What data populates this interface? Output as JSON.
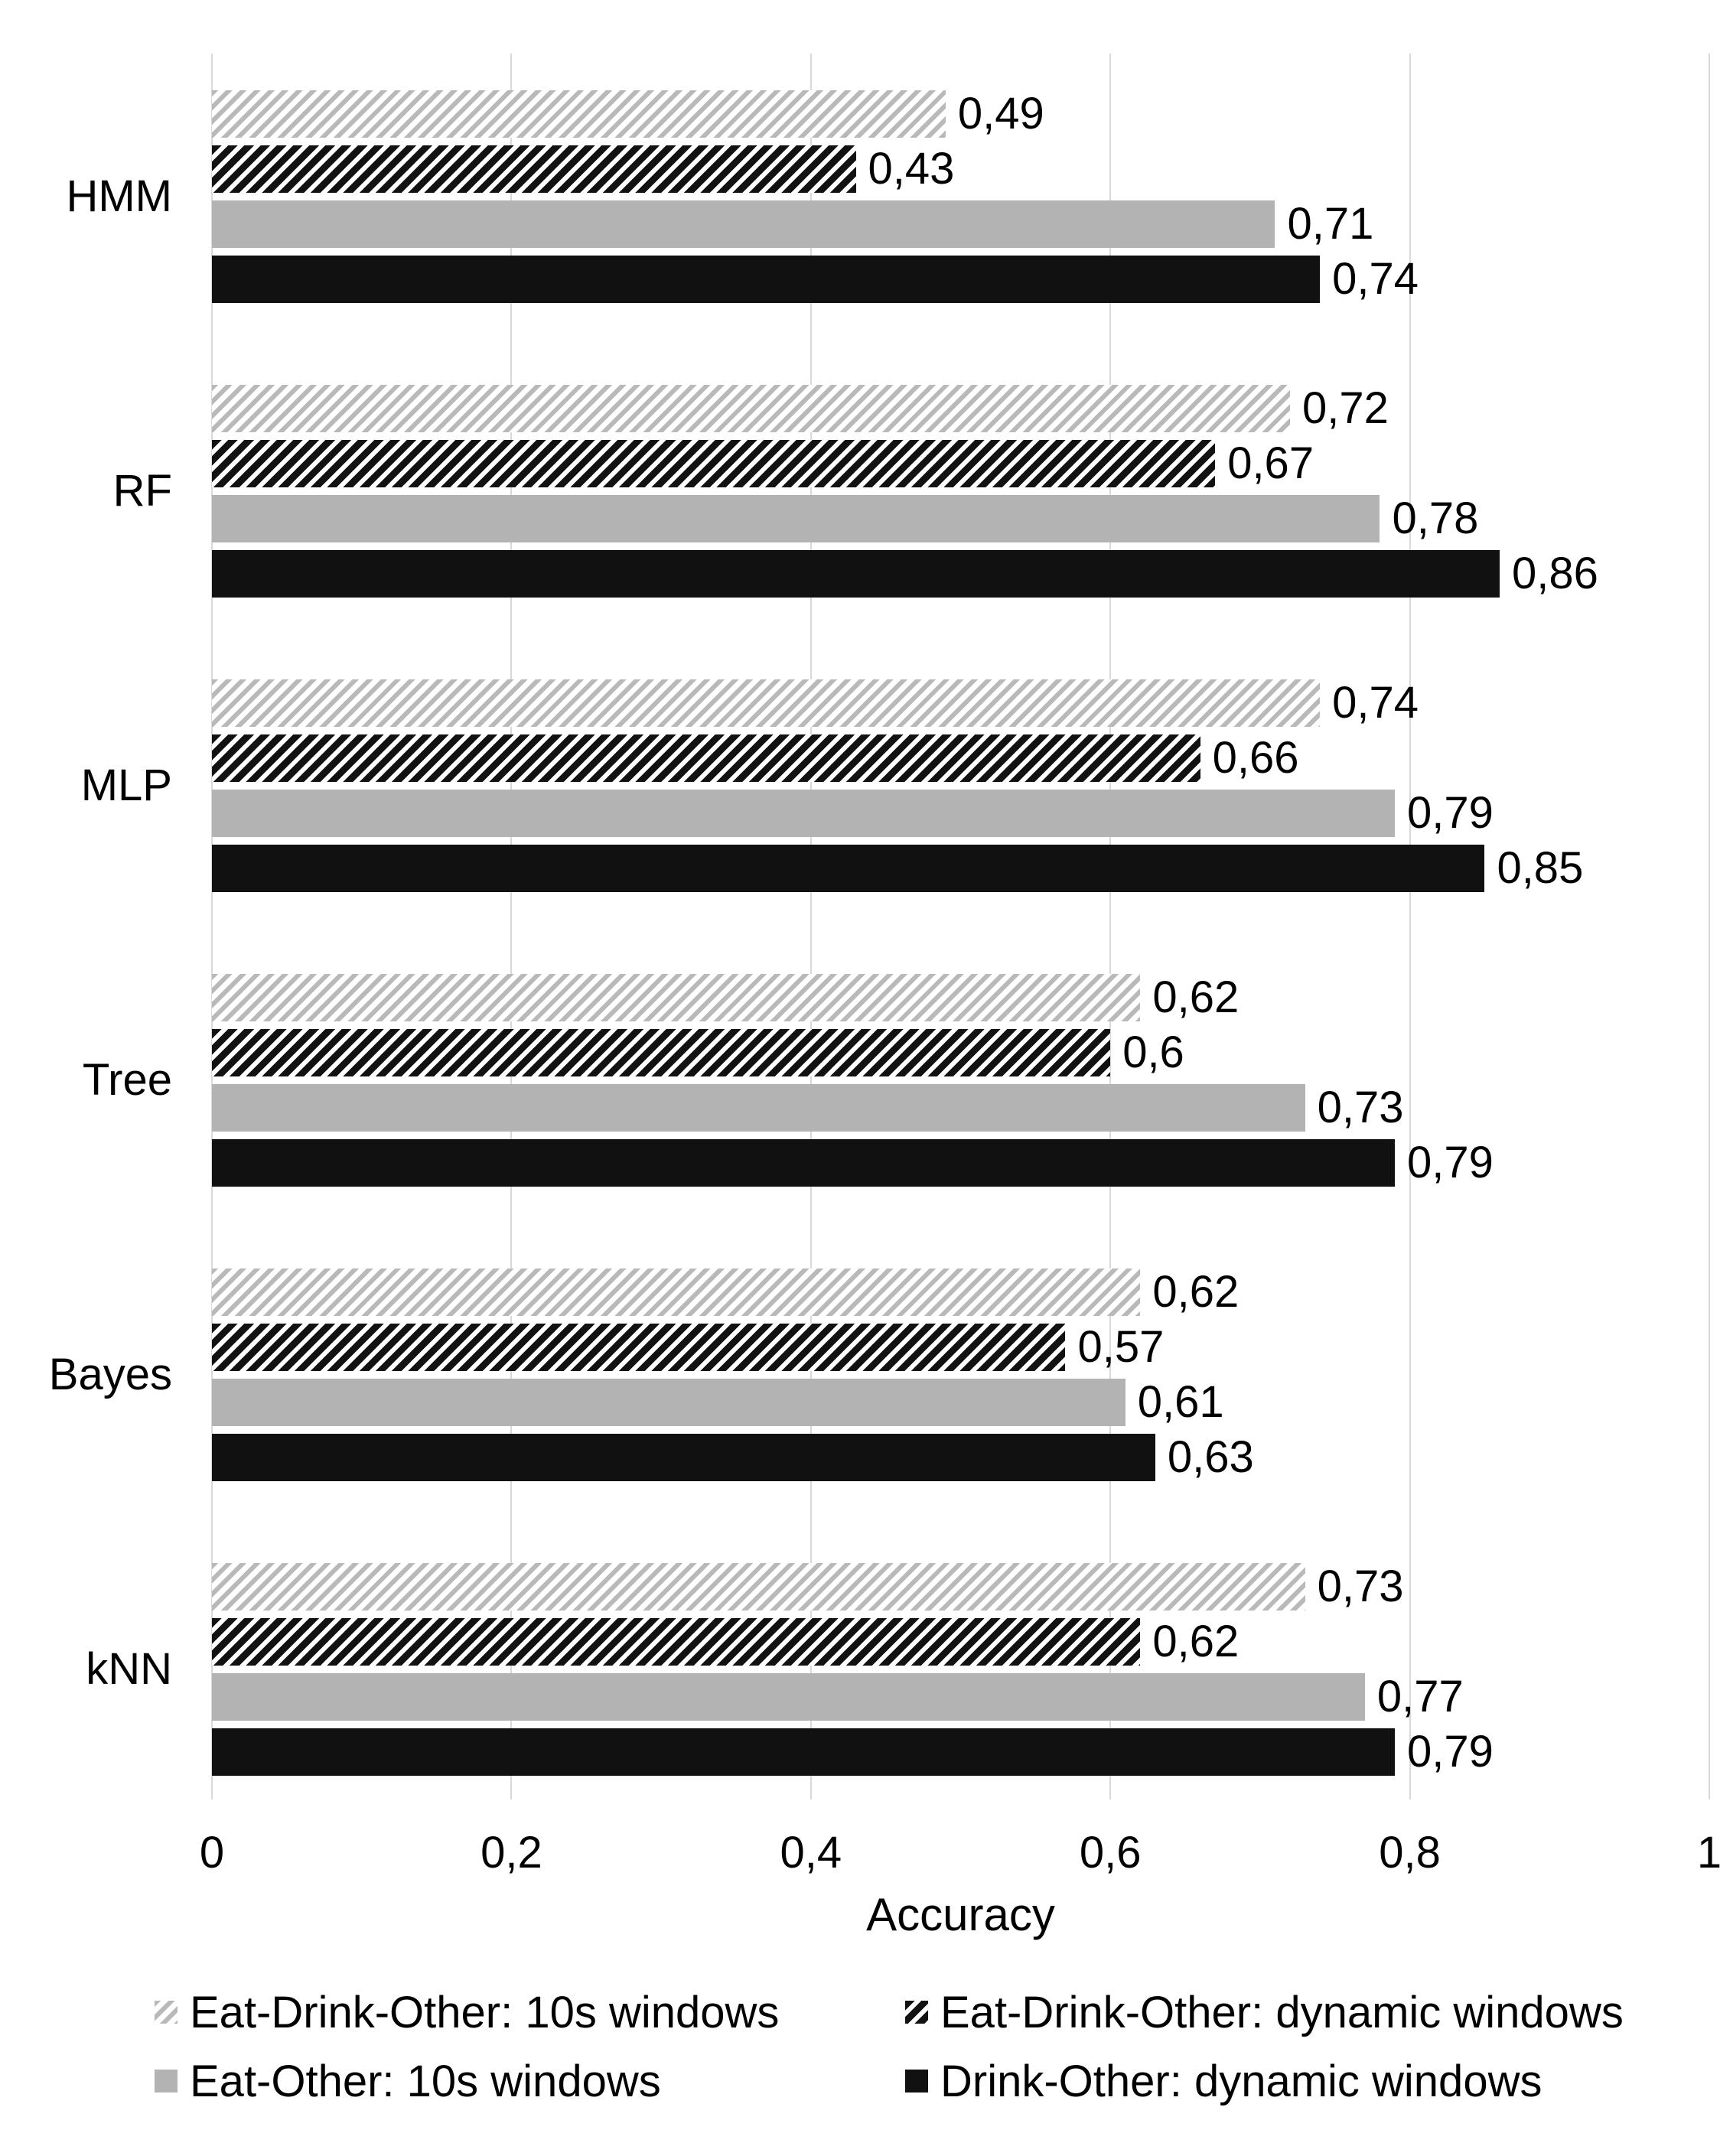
{
  "chart_data": {
    "type": "bar",
    "orientation": "horizontal",
    "title": "",
    "xlabel": "Accuracy",
    "ylabel": "",
    "xlim": [
      0,
      1
    ],
    "grid": true,
    "legend_position": "bottom",
    "xticks": [
      {
        "label": "0",
        "value": 0
      },
      {
        "label": "0,2",
        "value": 0.2
      },
      {
        "label": "0,4",
        "value": 0.4
      },
      {
        "label": "0,6",
        "value": 0.6
      },
      {
        "label": "0,8",
        "value": 0.8
      },
      {
        "label": "1",
        "value": 1
      }
    ],
    "categories": [
      "HMM",
      "RF",
      "MLP",
      "Tree",
      "Bayes",
      "kNN"
    ],
    "series": [
      {
        "name": "Eat-Drink-Other: 10s windows",
        "pattern": "light-hatch",
        "values": [
          0.49,
          0.72,
          0.74,
          0.62,
          0.62,
          0.73
        ],
        "labels": [
          "0,49",
          "0,72",
          "0,74",
          "0,62",
          "0,62",
          "0,73"
        ]
      },
      {
        "name": "Eat-Drink-Other: dynamic windows",
        "pattern": "dark-hatch",
        "values": [
          0.43,
          0.67,
          0.66,
          0.6,
          0.57,
          0.62
        ],
        "labels": [
          "0,43",
          "0,67",
          "0,66",
          "0,6",
          "0,57",
          "0,62"
        ]
      },
      {
        "name": "Eat-Other: 10s windows",
        "pattern": "solid-gray",
        "values": [
          0.71,
          0.78,
          0.79,
          0.73,
          0.61,
          0.77
        ],
        "labels": [
          "0,71",
          "0,78",
          "0,79",
          "0,73",
          "0,61",
          "0,77"
        ]
      },
      {
        "name": "Drink-Other: dynamic windows",
        "pattern": "solid-black",
        "values": [
          0.74,
          0.86,
          0.85,
          0.79,
          0.63,
          0.79
        ],
        "labels": [
          "0,74",
          "0,86",
          "0,85",
          "0,79",
          "0,63",
          "0,79"
        ]
      }
    ]
  },
  "colors": {
    "bar_gray": "#b3b3b3",
    "bar_black": "#111111",
    "hatch_light_stripe": "#b9b9b9",
    "hatch_dark_stripe": "#121212",
    "gridline": "#d9d9d9",
    "text": "#000000",
    "background": "#ffffff"
  }
}
